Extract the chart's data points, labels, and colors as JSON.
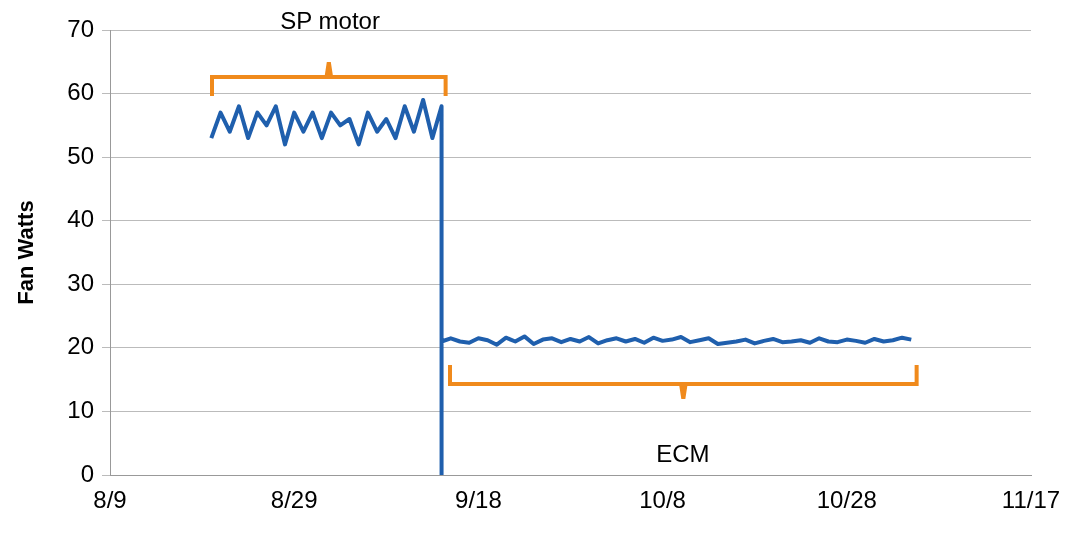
{
  "chart_data": {
    "type": "line",
    "ylabel": "Fan Watts",
    "x": [
      "--08-20",
      "--08-21",
      "--08-22",
      "--08-23",
      "--08-24",
      "--08-25",
      "--08-26",
      "--08-27",
      "--08-28",
      "--08-29",
      "--08-30",
      "--08-31",
      "--09-01",
      "--09-02",
      "--09-03",
      "--09-04",
      "--09-05",
      "--09-06",
      "--09-07",
      "--09-08",
      "--09-09",
      "--09-10",
      "--09-11",
      "--09-12",
      "--09-13",
      "--09-14",
      "--09-14",
      "--09-14",
      "--09-15",
      "--09-16",
      "--09-17",
      "--09-18",
      "--09-19",
      "--09-20",
      "--09-21",
      "--09-22",
      "--09-23",
      "--09-24",
      "--09-25",
      "--09-26",
      "--09-27",
      "--09-28",
      "--09-29",
      "--09-30",
      "--10-01",
      "--10-02",
      "--10-03",
      "--10-04",
      "--10-05",
      "--10-06",
      "--10-07",
      "--10-08",
      "--10-09",
      "--10-10",
      "--10-11",
      "--10-12",
      "--10-13",
      "--10-14",
      "--10-15",
      "--10-16",
      "--10-17",
      "--10-18",
      "--10-19",
      "--10-20",
      "--10-21",
      "--10-22",
      "--10-23",
      "--10-24",
      "--10-25",
      "--10-26",
      "--10-27",
      "--10-28",
      "--10-29",
      "--10-30",
      "--10-31",
      "--11-01",
      "--11-02",
      "--11-03",
      "--11-04"
    ],
    "series": [
      {
        "color": "#1f5fad",
        "values": [
          53,
          57,
          54,
          58,
          53,
          57,
          55,
          58,
          52,
          57,
          54,
          57,
          53,
          57,
          55,
          56,
          52,
          57,
          54,
          56,
          53,
          58,
          54,
          59,
          53,
          58,
          0,
          21,
          21.5,
          21,
          20.8,
          21.5,
          21.2,
          20.5,
          21.6,
          21,
          21.8,
          20.6,
          21.3,
          21.5,
          20.9,
          21.4,
          21,
          21.7,
          20.7,
          21.2,
          21.5,
          21,
          21.4,
          20.8,
          21.6,
          21.1,
          21.3,
          21.7,
          20.9,
          21.2,
          21.5,
          20.6,
          20.8,
          21,
          21.3,
          20.7,
          21.1,
          21.4,
          20.9,
          21,
          21.2,
          20.8,
          21.5,
          21,
          20.9,
          21.3,
          21.1,
          20.8,
          21.4,
          21,
          21.2,
          21.6,
          21.3
        ]
      }
    ],
    "xlim": [
      "--08-09",
      "--11-17"
    ],
    "xticks": [
      {
        "value": "--08-09",
        "label": "8/9"
      },
      {
        "value": "--08-29",
        "label": "8/29"
      },
      {
        "value": "--09-18",
        "label": "9/18"
      },
      {
        "value": "--10-08",
        "label": "10/8"
      },
      {
        "value": "--10-28",
        "label": "10/28"
      },
      {
        "value": "--11-17",
        "label": "11/17"
      }
    ],
    "ylim": [
      0,
      70
    ],
    "yticks": [
      0,
      10,
      20,
      30,
      40,
      50,
      60,
      70
    ],
    "grid": "y",
    "marker": "none",
    "line_style": "solid",
    "annotations": [
      "SP motor",
      "ECM"
    ]
  }
}
